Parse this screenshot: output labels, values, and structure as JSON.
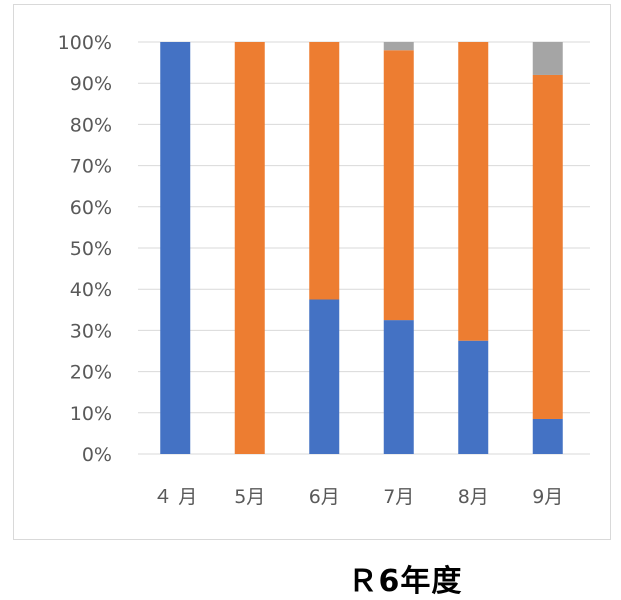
{
  "caption": "Ｒ6年度",
  "chart_data": {
    "type": "bar",
    "stacked": true,
    "percent": true,
    "categories": [
      "４ 月",
      "5月",
      "6月",
      "7月",
      "8月",
      "9月"
    ],
    "series": [
      {
        "color": "#4472c4",
        "values": [
          100,
          0,
          37.5,
          32.5,
          27.5,
          8.5
        ]
      },
      {
        "color": "#ed7d31",
        "values": [
          0,
          100,
          62.5,
          65.5,
          72.5,
          83.5
        ]
      },
      {
        "color": "#a5a5a5",
        "values": [
          0,
          0,
          0,
          2,
          0,
          8
        ]
      }
    ],
    "y_ticks": [
      "0%",
      "10%",
      "20%",
      "30%",
      "40%",
      "50%",
      "60%",
      "70%",
      "80%",
      "90%",
      "100%"
    ],
    "ylim": [
      0,
      100
    ],
    "grid": true,
    "legend": "none"
  }
}
